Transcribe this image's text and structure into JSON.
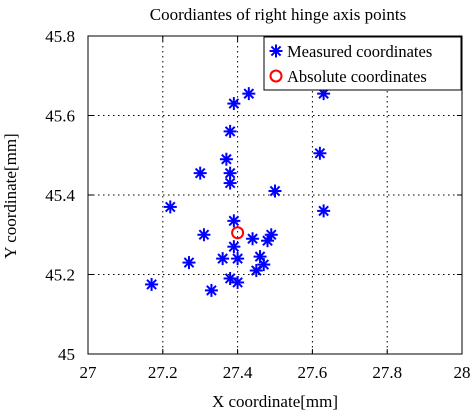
{
  "chart_data": {
    "type": "scatter",
    "title": "Coordiantes of right hinge axis points",
    "xlabel": "X coordinate[mm]",
    "ylabel": "Y coordinate[mm]",
    "xlim": [
      27,
      28
    ],
    "ylim": [
      45,
      45.8
    ],
    "xticks": [
      27,
      27.2,
      27.4,
      27.6,
      27.8,
      28
    ],
    "xtick_labels": [
      "27",
      "27.2",
      "27.4",
      "27.6",
      "27.8",
      "28"
    ],
    "yticks": [
      45,
      45.2,
      45.4,
      45.6,
      45.8
    ],
    "ytick_labels": [
      "45",
      "45.2",
      "45.4",
      "45.6",
      "45.8"
    ],
    "grid": true,
    "legend_position": "top-right",
    "series": [
      {
        "name": "Measured coordinates",
        "marker": "asterisk",
        "color": "#0000ff",
        "points": [
          [
            27.17,
            45.175
          ],
          [
            27.22,
            45.37
          ],
          [
            27.27,
            45.23
          ],
          [
            27.3,
            45.455
          ],
          [
            27.31,
            45.3
          ],
          [
            27.33,
            45.16
          ],
          [
            27.36,
            45.24
          ],
          [
            27.37,
            45.49
          ],
          [
            27.38,
            45.56
          ],
          [
            27.38,
            45.455
          ],
          [
            27.38,
            45.43
          ],
          [
            27.38,
            45.19
          ],
          [
            27.39,
            45.63
          ],
          [
            27.39,
            45.335
          ],
          [
            27.39,
            45.27
          ],
          [
            27.4,
            45.24
          ],
          [
            27.4,
            45.18
          ],
          [
            27.43,
            45.655
          ],
          [
            27.44,
            45.29
          ],
          [
            27.45,
            45.21
          ],
          [
            27.46,
            45.245
          ],
          [
            27.47,
            45.225
          ],
          [
            27.48,
            45.285
          ],
          [
            27.49,
            45.3
          ],
          [
            27.5,
            45.41
          ],
          [
            27.62,
            45.505
          ],
          [
            27.63,
            45.36
          ],
          [
            27.63,
            45.655
          ]
        ]
      },
      {
        "name": "Absolute coordinates",
        "marker": "circle",
        "color": "#ff0000",
        "points": [
          [
            27.4,
            45.305
          ]
        ]
      }
    ]
  }
}
